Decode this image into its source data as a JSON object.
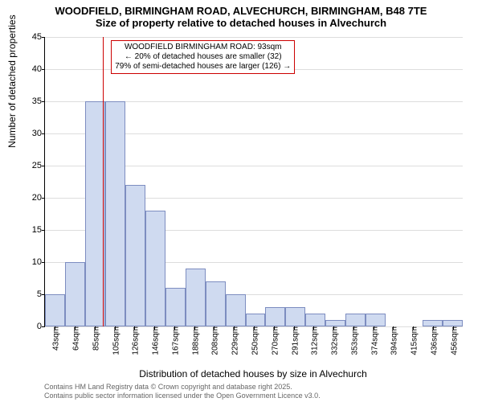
{
  "title_main": "WOODFIELD, BIRMINGHAM ROAD, ALVECHURCH, BIRMINGHAM, B48 7TE",
  "title_sub": "Size of property relative to detached houses in Alvechurch",
  "y_axis_label": "Number of detached properties",
  "x_axis_label": "Distribution of detached houses by size in Alvechurch",
  "footer_line1": "Contains HM Land Registry data © Crown copyright and database right 2025.",
  "footer_line2": "Contains public sector information licensed under the Open Government Licence v3.0.",
  "annotation": {
    "line1": "WOODFIELD BIRMINGHAM ROAD: 93sqm",
    "line2": "← 20% of detached houses are smaller (32)",
    "line3": "79% of semi-detached houses are larger (126) →",
    "x_value": 93,
    "border_color": "#cc0000",
    "line_color": "#cc0000"
  },
  "chart": {
    "type": "histogram",
    "bar_fill": "#cfdaf0",
    "bar_border": "rgba(70,90,160,0.6)",
    "grid_color": "#dddddd",
    "background_color": "#ffffff",
    "x_min": 33,
    "x_max": 465,
    "ylim": [
      0,
      45
    ],
    "ytick_step": 5,
    "y_ticks": [
      0,
      5,
      10,
      15,
      20,
      25,
      30,
      35,
      40,
      45
    ],
    "x_ticks": [
      43,
      64,
      85,
      105,
      126,
      146,
      167,
      188,
      208,
      229,
      250,
      270,
      291,
      312,
      332,
      353,
      374,
      394,
      415,
      436,
      456
    ],
    "x_tick_suffix": "sqm",
    "bar_values": [
      5,
      10,
      35,
      35,
      22,
      18,
      6,
      9,
      7,
      5,
      2,
      3,
      3,
      2,
      1,
      2,
      2,
      0,
      0,
      1,
      1
    ],
    "title_fontsize": 13,
    "axis_label_fontsize": 12,
    "tick_fontsize": 11
  }
}
